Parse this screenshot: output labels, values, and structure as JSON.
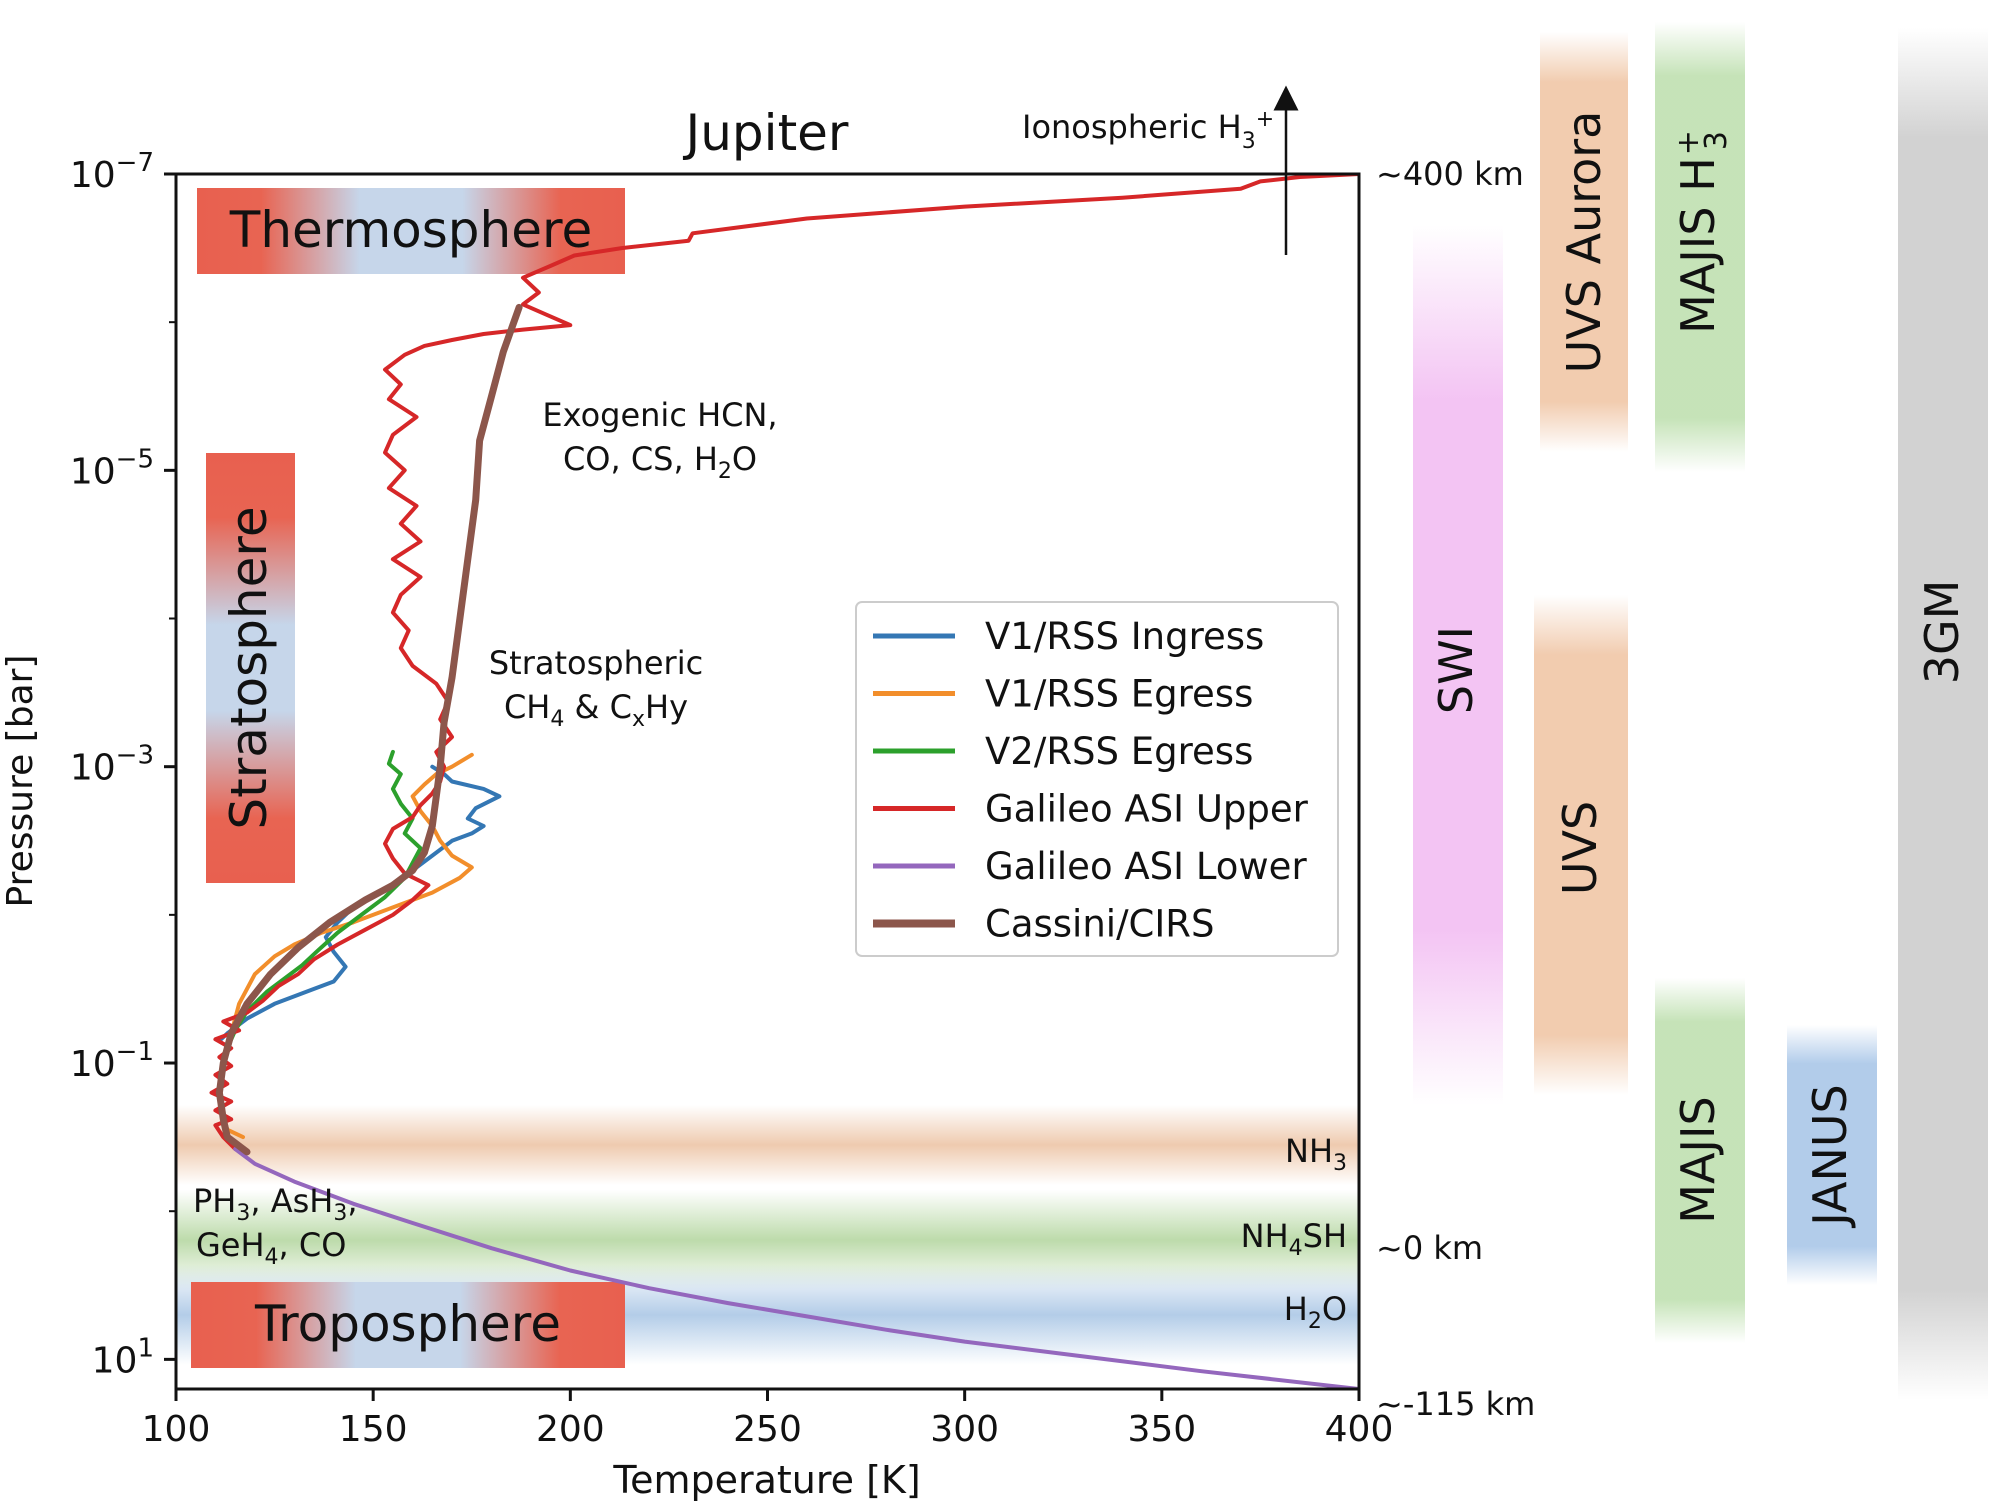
{
  "chart_data": {
    "type": "line",
    "title": "Jupiter",
    "xlabel": "Temperature [K]",
    "ylabel": "Pressure [bar]",
    "xlim": [
      100,
      400
    ],
    "ylim_log10": [
      1.2,
      -7
    ],
    "yscale": "log",
    "grid": false,
    "legend_position": "center-right",
    "xticks": [
      100,
      150,
      200,
      250,
      300,
      350,
      400
    ],
    "yticks": [
      {
        "exp": -7,
        "label": "−7"
      },
      {
        "exp": -5,
        "label": "−5"
      },
      {
        "exp": -3,
        "label": "−3"
      },
      {
        "exp": -1,
        "label": "−1"
      },
      {
        "exp": 1,
        "label": "1"
      }
    ],
    "altitude_labels": [
      {
        "log10p": -7,
        "label": "~400 km"
      },
      {
        "log10p": 0.25,
        "label": "~0 km"
      },
      {
        "log10p": 1.3,
        "label": "~-115 km"
      }
    ],
    "regions": [
      {
        "label": "Thermosphere",
        "orient": "horizontal"
      },
      {
        "label": "Stratosphere",
        "orient": "vertical"
      },
      {
        "label": "Troposphere",
        "orient": "horizontal"
      }
    ],
    "cloud_layers": [
      {
        "base": "NH",
        "sub": "3",
        "rest": "",
        "color": "#e9b995",
        "log10p_range": [
          -0.55,
          -0.05
        ]
      },
      {
        "base": "NH",
        "sub": "4",
        "rest": "SH",
        "color": "#a7cf8f",
        "log10p_range": [
          0.05,
          0.6
        ]
      },
      {
        "base": "H",
        "sub": "2",
        "rest": "O",
        "color": "#a6c4e4",
        "log10p_range": [
          0.65,
          1.15
        ]
      }
    ],
    "annotations": {
      "ionospheric": {
        "text": "Ionospheric H",
        "sub": "3",
        "sup": "+"
      },
      "exogenic_line1": "Exogenic HCN,",
      "exogenic_line2": {
        "pre": "CO, CS, H",
        "sub": "2",
        "post": "O"
      },
      "strato_line1": "Stratospheric",
      "strato_line2": {
        "pre": "CH",
        "sub1": "4",
        "mid": " & C",
        "sub2": "x",
        "post": "Hy"
      },
      "trop_line1": {
        "t1": "PH",
        "s1": "3",
        "t2": ", AsH",
        "s2": "3",
        "t3": ","
      },
      "trop_line2": {
        "t1": "GeH",
        "s1": "4",
        "t2": ", CO"
      }
    },
    "series": [
      {
        "name": "V1/RSS Ingress",
        "color": "#3477b4",
        "width": 4,
        "points": [
          [
            111,
            -1.15
          ],
          [
            113,
            -1.2
          ],
          [
            118,
            -1.3
          ],
          [
            125,
            -1.4
          ],
          [
            135,
            -1.5
          ],
          [
            140,
            -1.55
          ],
          [
            143,
            -1.65
          ],
          [
            140,
            -1.75
          ],
          [
            138,
            -1.85
          ],
          [
            141,
            -1.95
          ],
          [
            145,
            -2.05
          ],
          [
            150,
            -2.12
          ],
          [
            155,
            -2.2
          ],
          [
            160,
            -2.3
          ],
          [
            165,
            -2.4
          ],
          [
            170,
            -2.5
          ],
          [
            175,
            -2.55
          ],
          [
            178,
            -2.6
          ],
          [
            174,
            -2.65
          ],
          [
            176,
            -2.72
          ],
          [
            182,
            -2.8
          ],
          [
            178,
            -2.85
          ],
          [
            170,
            -2.9
          ],
          [
            168,
            -2.95
          ],
          [
            165,
            -3.0
          ]
        ]
      },
      {
        "name": "V1/RSS Egress",
        "color": "#f28e2b",
        "width": 4,
        "points": [
          [
            117,
            -0.5
          ],
          [
            113,
            -0.55
          ],
          [
            112,
            -0.65
          ],
          [
            111,
            -0.8
          ],
          [
            112,
            -1.0
          ],
          [
            114,
            -1.2
          ],
          [
            116,
            -1.4
          ],
          [
            120,
            -1.6
          ],
          [
            125,
            -1.72
          ],
          [
            130,
            -1.8
          ],
          [
            137,
            -1.88
          ],
          [
            145,
            -1.95
          ],
          [
            155,
            -2.05
          ],
          [
            165,
            -2.15
          ],
          [
            172,
            -2.25
          ],
          [
            175,
            -2.32
          ],
          [
            170,
            -2.4
          ],
          [
            167,
            -2.5
          ],
          [
            165,
            -2.6
          ],
          [
            162,
            -2.7
          ],
          [
            160,
            -2.8
          ],
          [
            163,
            -2.88
          ],
          [
            166,
            -2.95
          ],
          [
            170,
            -3.0
          ],
          [
            175,
            -3.08
          ]
        ]
      },
      {
        "name": "V2/RSS Egress",
        "color": "#2ca02c",
        "width": 4,
        "points": [
          [
            112,
            -1.0
          ],
          [
            113,
            -1.1
          ],
          [
            115,
            -1.22
          ],
          [
            118,
            -1.35
          ],
          [
            123,
            -1.48
          ],
          [
            128,
            -1.58
          ],
          [
            132,
            -1.66
          ],
          [
            136,
            -1.76
          ],
          [
            141,
            -1.88
          ],
          [
            147,
            -2.0
          ],
          [
            153,
            -2.12
          ],
          [
            158,
            -2.25
          ],
          [
            160,
            -2.35
          ],
          [
            162,
            -2.45
          ],
          [
            158,
            -2.55
          ],
          [
            160,
            -2.65
          ],
          [
            157,
            -2.75
          ],
          [
            155,
            -2.85
          ],
          [
            157,
            -2.95
          ],
          [
            154,
            -3.02
          ],
          [
            155,
            -3.1
          ]
        ]
      },
      {
        "name": "Galileo ASI Upper",
        "color": "#d62728",
        "width": 4,
        "points": [
          [
            115,
            -0.42
          ],
          [
            112,
            -0.5
          ],
          [
            110,
            -0.58
          ],
          [
            114,
            -0.62
          ],
          [
            110,
            -0.68
          ],
          [
            114,
            -0.74
          ],
          [
            109,
            -0.8
          ],
          [
            113,
            -0.86
          ],
          [
            110,
            -0.92
          ],
          [
            114,
            -0.98
          ],
          [
            111,
            -1.04
          ],
          [
            114,
            -1.1
          ],
          [
            110,
            -1.16
          ],
          [
            116,
            -1.22
          ],
          [
            112,
            -1.28
          ],
          [
            118,
            -1.34
          ],
          [
            122,
            -1.42
          ],
          [
            126,
            -1.52
          ],
          [
            131,
            -1.6
          ],
          [
            135,
            -1.7
          ],
          [
            141,
            -1.8
          ],
          [
            148,
            -1.9
          ],
          [
            155,
            -2.0
          ],
          [
            160,
            -2.1
          ],
          [
            164,
            -2.2
          ],
          [
            158,
            -2.28
          ],
          [
            155,
            -2.38
          ],
          [
            153,
            -2.48
          ],
          [
            155,
            -2.58
          ],
          [
            160,
            -2.66
          ],
          [
            162,
            -2.74
          ],
          [
            165,
            -2.82
          ],
          [
            167,
            -2.9
          ],
          [
            168,
            -3.0
          ],
          [
            166,
            -3.1
          ],
          [
            170,
            -3.2
          ],
          [
            167,
            -3.32
          ],
          [
            169,
            -3.44
          ],
          [
            166,
            -3.56
          ],
          [
            160,
            -3.68
          ],
          [
            157,
            -3.8
          ],
          [
            159,
            -3.92
          ],
          [
            155,
            -4.04
          ],
          [
            157,
            -4.16
          ],
          [
            162,
            -4.28
          ],
          [
            155,
            -4.4
          ],
          [
            162,
            -4.52
          ],
          [
            157,
            -4.64
          ],
          [
            161,
            -4.76
          ],
          [
            154,
            -4.88
          ],
          [
            158,
            -5.0
          ],
          [
            153,
            -5.12
          ],
          [
            155,
            -5.24
          ],
          [
            161,
            -5.36
          ],
          [
            154,
            -5.48
          ],
          [
            157,
            -5.58
          ],
          [
            153,
            -5.68
          ],
          [
            158,
            -5.78
          ],
          [
            163,
            -5.84
          ],
          [
            170,
            -5.88
          ],
          [
            178,
            -5.92
          ],
          [
            188,
            -5.95
          ],
          [
            200,
            -5.98
          ],
          [
            194,
            -6.05
          ],
          [
            188,
            -6.12
          ],
          [
            192,
            -6.2
          ],
          [
            188,
            -6.3
          ],
          [
            195,
            -6.38
          ],
          [
            201,
            -6.45
          ],
          [
            213,
            -6.5
          ],
          [
            230,
            -6.55
          ],
          [
            231,
            -6.6
          ],
          [
            260,
            -6.7
          ],
          [
            300,
            -6.78
          ],
          [
            340,
            -6.84
          ],
          [
            370,
            -6.9
          ],
          [
            375,
            -6.95
          ],
          [
            385,
            -6.98
          ],
          [
            400,
            -7.0
          ]
        ]
      },
      {
        "name": "Galileo ASI Lower",
        "color": "#9467bd",
        "width": 4,
        "points": [
          [
            115,
            -0.42
          ],
          [
            120,
            -0.32
          ],
          [
            130,
            -0.2
          ],
          [
            145,
            -0.05
          ],
          [
            160,
            0.08
          ],
          [
            180,
            0.25
          ],
          [
            200,
            0.4
          ],
          [
            220,
            0.52
          ],
          [
            240,
            0.62
          ],
          [
            260,
            0.71
          ],
          [
            280,
            0.8
          ],
          [
            300,
            0.88
          ],
          [
            330,
            0.98
          ],
          [
            360,
            1.08
          ],
          [
            400,
            1.2
          ]
        ]
      },
      {
        "name": "Cassini/CIRS",
        "color": "#8c564b",
        "width": 7,
        "points": [
          [
            118,
            -0.4
          ],
          [
            113,
            -0.5
          ],
          [
            112,
            -0.62
          ],
          [
            111,
            -0.8
          ],
          [
            112,
            -1.0
          ],
          [
            114,
            -1.2
          ],
          [
            118,
            -1.4
          ],
          [
            124,
            -1.6
          ],
          [
            131,
            -1.78
          ],
          [
            139,
            -1.95
          ],
          [
            148,
            -2.1
          ],
          [
            155,
            -2.2
          ],
          [
            160,
            -2.3
          ],
          [
            163,
            -2.42
          ],
          [
            165,
            -2.6
          ],
          [
            166,
            -2.8
          ],
          [
            167,
            -3.0
          ],
          [
            168,
            -3.3
          ],
          [
            170,
            -3.6
          ],
          [
            172,
            -4.0
          ],
          [
            174,
            -4.4
          ],
          [
            176,
            -4.8
          ],
          [
            177,
            -5.2
          ],
          [
            180,
            -5.5
          ],
          [
            183,
            -5.8
          ],
          [
            187,
            -6.1
          ]
        ]
      }
    ]
  },
  "instruments": [
    {
      "name": "UVS Aurora",
      "color": "#f0c6a6",
      "sup": "",
      "sub": ""
    },
    {
      "name": "MAJIS H",
      "color": "#bfe0b0",
      "sup": "+",
      "sub": "3"
    },
    {
      "name": "3GM",
      "color": "#cdcdcd",
      "sup": "",
      "sub": ""
    },
    {
      "name": "SWI",
      "color": "#eeaaee",
      "sup": "",
      "sub": ""
    },
    {
      "name": "UVS",
      "color": "#f0c6a6",
      "sup": "",
      "sub": ""
    },
    {
      "name": "MAJIS",
      "color": "#bfe0b0",
      "sup": "",
      "sub": ""
    },
    {
      "name": "JANUS",
      "color": "#a9c6e8",
      "sup": "",
      "sub": ""
    }
  ]
}
